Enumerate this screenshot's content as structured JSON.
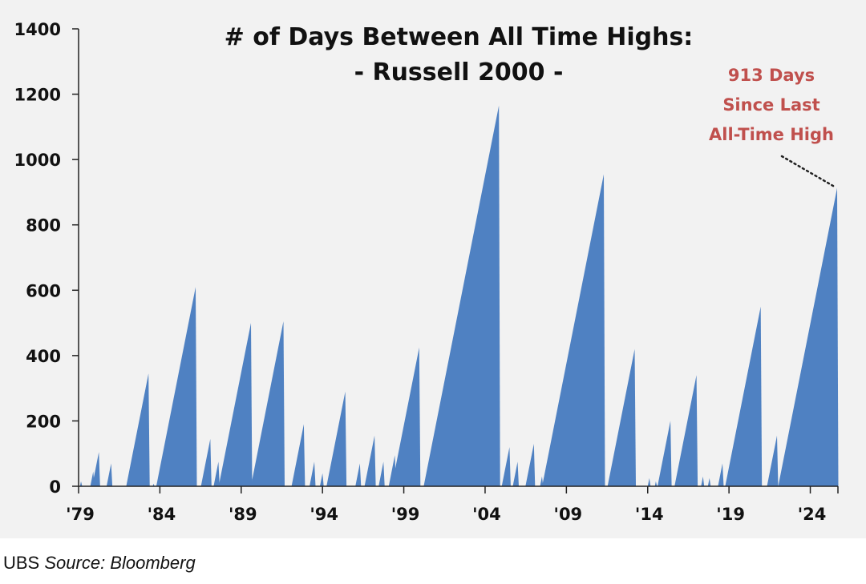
{
  "chart_data": {
    "type": "area",
    "title_lines": [
      "# of Days Between All Time Highs:",
      "- Russell 2000 -"
    ],
    "xlabel": "",
    "ylabel": "",
    "ylim": [
      0,
      1400
    ],
    "xlim": [
      1979,
      2025.7
    ],
    "y_ticks": [
      0,
      200,
      400,
      600,
      800,
      1000,
      1200,
      1400
    ],
    "x_ticks": [
      {
        "year": 1979,
        "label": "'79"
      },
      {
        "year": 1984,
        "label": "'84"
      },
      {
        "year": 1989,
        "label": "'89"
      },
      {
        "year": 1994,
        "label": "'94"
      },
      {
        "year": 1999,
        "label": "'99"
      },
      {
        "year": 2004,
        "label": "'04"
      },
      {
        "year": 2009,
        "label": "'09"
      },
      {
        "year": 2014,
        "label": "'14"
      },
      {
        "year": 2019,
        "label": "'19"
      },
      {
        "year": 2024,
        "label": "'24"
      }
    ],
    "grid": false,
    "fill_color": "#4f81c2",
    "annotation": {
      "lines": [
        "913 Days",
        "Since Last",
        "All-Time High"
      ],
      "color": "#c0504d",
      "points_to_year": 2025.65,
      "points_to_value": 913
    },
    "series": [
      {
        "drawdowns": [
          {
            "peak": 1979.15,
            "days": 15
          },
          {
            "peak": 1979.9,
            "days": 45
          },
          {
            "peak": 1980.25,
            "days": 105
          },
          {
            "peak": 1981.0,
            "days": 70
          },
          {
            "peak": 1983.3,
            "days": 345
          },
          {
            "peak": 1983.6,
            "days": 8
          },
          {
            "peak": 1986.2,
            "days": 610
          },
          {
            "peak": 1987.1,
            "days": 145
          },
          {
            "peak": 1987.6,
            "days": 75
          },
          {
            "peak": 1989.6,
            "days": 500
          },
          {
            "peak": 1991.6,
            "days": 505
          },
          {
            "peak": 1992.85,
            "days": 190
          },
          {
            "peak": 1993.5,
            "days": 75
          },
          {
            "peak": 1994.0,
            "days": 40
          },
          {
            "peak": 1995.4,
            "days": 290
          },
          {
            "peak": 1996.3,
            "days": 70
          },
          {
            "peak": 1997.2,
            "days": 155
          },
          {
            "peak": 1997.75,
            "days": 75
          },
          {
            "peak": 1998.45,
            "days": 95
          },
          {
            "peak": 1999.95,
            "days": 425
          },
          {
            "peak": 2004.85,
            "days": 1165
          },
          {
            "peak": 2005.5,
            "days": 120
          },
          {
            "peak": 2006.0,
            "days": 75
          },
          {
            "peak": 2007.0,
            "days": 130
          },
          {
            "peak": 2007.5,
            "days": 30
          },
          {
            "peak": 2011.3,
            "days": 955
          },
          {
            "peak": 2013.2,
            "days": 420
          },
          {
            "peak": 2014.1,
            "days": 25
          },
          {
            "peak": 2014.5,
            "days": 15
          },
          {
            "peak": 2015.4,
            "days": 200
          },
          {
            "peak": 2017.0,
            "days": 340
          },
          {
            "peak": 2017.4,
            "days": 30
          },
          {
            "peak": 2017.8,
            "days": 25
          },
          {
            "peak": 2018.6,
            "days": 70
          },
          {
            "peak": 2020.95,
            "days": 550
          },
          {
            "peak": 2021.95,
            "days": 155
          },
          {
            "peak": 2025.65,
            "days": 913
          }
        ]
      }
    ]
  },
  "footer": {
    "org": "UBS",
    "source": "Source: Bloomberg"
  }
}
